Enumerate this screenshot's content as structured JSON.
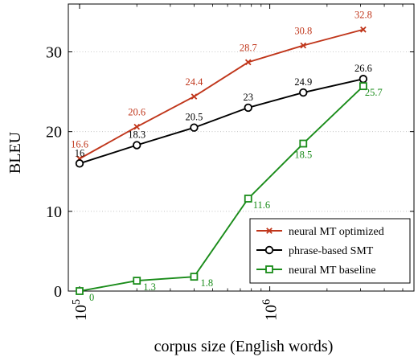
{
  "chart_data": {
    "type": "line",
    "title": "",
    "xlabel": "corpus size (English words)",
    "ylabel": "BLEU",
    "xscale": "log",
    "xlim": [
      100000,
      5000000
    ],
    "ylim": [
      0,
      36
    ],
    "grid": "horizontal dotted",
    "legend_position": "bottom-right",
    "x_ticks": [
      {
        "value": 100000,
        "label": "10^5",
        "base": "10",
        "exp": "5"
      },
      {
        "value": 1000000,
        "label": "10^6",
        "base": "10",
        "exp": "6"
      }
    ],
    "y_ticks": [
      {
        "value": 0,
        "label": "0"
      },
      {
        "value": 10,
        "label": "10"
      },
      {
        "value": 20,
        "label": "20"
      },
      {
        "value": 30,
        "label": "30"
      }
    ],
    "x": [
      100000,
      200000,
      400000,
      770000,
      1500000,
      3100000
    ],
    "series": [
      {
        "name": "neural MT optimized",
        "color": "#c0361b",
        "marker": "x",
        "values": [
          16.6,
          20.6,
          24.4,
          28.7,
          30.8,
          32.8
        ],
        "labels": [
          "16.6",
          "20.6",
          "24.4",
          "28.7",
          "30.8",
          "32.8"
        ]
      },
      {
        "name": "phrase-based SMT",
        "color": "#000000",
        "marker": "circle",
        "values": [
          16,
          18.3,
          20.5,
          23,
          24.9,
          26.6
        ],
        "labels": [
          "16",
          "18.3",
          "20.5",
          "23",
          "24.9",
          "26.6"
        ]
      },
      {
        "name": "neural MT baseline",
        "color": "#1a8c1a",
        "marker": "square",
        "values": [
          0,
          1.3,
          1.8,
          11.6,
          18.5,
          25.7
        ],
        "labels": [
          "0",
          "1.3",
          "1.8",
          "11.6",
          "18.5",
          "25.7"
        ]
      }
    ]
  }
}
